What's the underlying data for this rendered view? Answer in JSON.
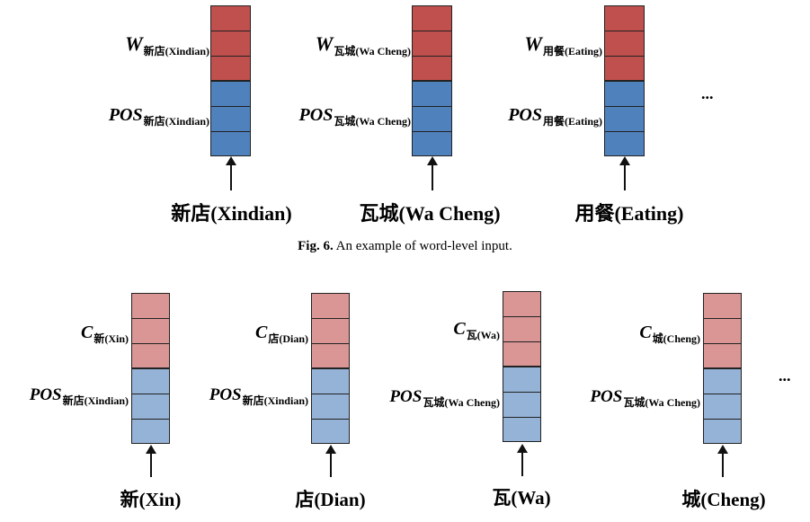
{
  "fig6": {
    "items": [
      {
        "w_main": "W",
        "w_sub": "新店(Xindian)",
        "pos_main": "POS",
        "pos_sub": "新店(Xindian)",
        "word": "新店(Xindian)"
      },
      {
        "w_main": "W",
        "w_sub": "瓦城(Wa Cheng)",
        "pos_main": "POS",
        "pos_sub": "瓦城(Wa Cheng)",
        "word": "瓦城(Wa Cheng)"
      },
      {
        "w_main": "W",
        "w_sub": "用餐(Eating)",
        "pos_main": "POS",
        "pos_sub": "用餐(Eating)",
        "word": "用餐(Eating)"
      }
    ],
    "ellipsis": "...",
    "caption_label": "Fig. 6.",
    "caption_text": " An example of word-level input.",
    "colors": {
      "w": "#c0504d",
      "pos": "#4f81bd"
    }
  },
  "fig7": {
    "items": [
      {
        "c_main": "C",
        "c_sub": "新(Xin)",
        "pos_main": "POS",
        "pos_sub": "新店(Xindian)",
        "word": "新(Xin)"
      },
      {
        "c_main": "C",
        "c_sub": "店(Dian)",
        "pos_main": "POS",
        "pos_sub": "新店(Xindian)",
        "word": "店(Dian)"
      },
      {
        "c_main": "C",
        "c_sub": "瓦(Wa)",
        "pos_main": "POS",
        "pos_sub": "瓦城(Wa Cheng)",
        "word": "瓦(Wa)"
      },
      {
        "c_main": "C",
        "c_sub": "城(Cheng)",
        "pos_main": "POS",
        "pos_sub": "瓦城(Wa Cheng)",
        "word": "城(Cheng)"
      }
    ],
    "ellipsis": "...",
    "colors": {
      "c": "#d99694",
      "pos": "#95b3d7"
    }
  }
}
